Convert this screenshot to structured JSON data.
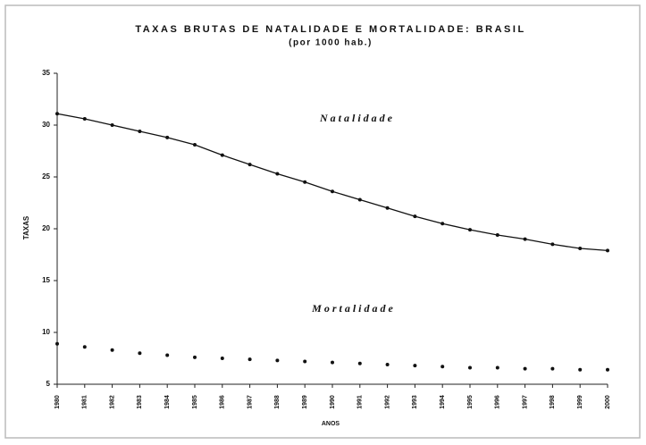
{
  "chart_data": {
    "type": "line",
    "title": "TAXAS BRUTAS DE NATALIDADE E MORTALIDADE: BRASIL",
    "subtitle": "(por 1000 hab.)",
    "y_label": "TAXAS",
    "x_label": "ANOS",
    "categories": [
      "1980",
      "1981",
      "1982",
      "1983",
      "1984",
      "1985",
      "1986",
      "1987",
      "1988",
      "1989",
      "1990",
      "1991",
      "1992",
      "1993",
      "1994",
      "1995",
      "1996",
      "1997",
      "1998",
      "1999",
      "2000"
    ],
    "series": [
      {
        "name": "Natalidade",
        "color": "#111111",
        "line": true,
        "values": [
          31.1,
          30.6,
          30.0,
          29.4,
          28.8,
          28.1,
          27.1,
          26.2,
          25.3,
          24.5,
          23.6,
          22.8,
          22.0,
          21.2,
          20.5,
          19.9,
          19.4,
          19.0,
          18.5,
          18.1,
          17.9
        ]
      },
      {
        "name": "Mortalidade",
        "color": "#111111",
        "line": false,
        "values": [
          8.9,
          8.6,
          8.3,
          8.0,
          7.8,
          7.6,
          7.5,
          7.4,
          7.3,
          7.2,
          7.1,
          7.0,
          6.9,
          6.8,
          6.7,
          6.6,
          6.6,
          6.5,
          6.5,
          6.4,
          6.4
        ]
      }
    ],
    "ylim": [
      5,
      35
    ],
    "yticks": [
      5,
      10,
      15,
      20,
      25,
      30,
      35
    ],
    "grid": false
  }
}
